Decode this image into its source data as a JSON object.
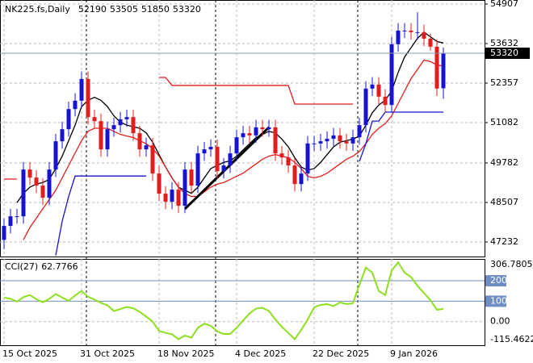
{
  "chart_data": [
    {
      "type": "candlestick",
      "title": "NK225.fs,Daily",
      "categories": [
        "15 Oct 2025",
        null,
        null,
        null,
        null,
        null,
        null,
        null,
        null,
        null,
        null,
        null,
        "31 Oct 2025",
        null,
        null,
        null,
        null,
        null,
        null,
        null,
        null,
        null,
        null,
        null,
        "18 Nov 2025",
        null,
        null,
        null,
        null,
        null,
        null,
        null,
        null,
        null,
        null,
        null,
        "4 Dec 2025",
        null,
        null,
        null,
        null,
        null,
        null,
        null,
        null,
        null,
        null,
        null,
        "22 Dec 2025",
        null,
        null,
        null,
        null,
        null,
        null,
        null,
        null,
        null,
        null,
        null,
        "9 Jan 2026",
        null,
        null,
        null,
        null,
        null,
        null,
        null,
        null
      ],
      "open": [
        47300,
        47750,
        48060,
        48060,
        49570,
        49310,
        49050,
        48660,
        49570,
        50480,
        50870,
        51520,
        51790,
        52490,
        51260,
        51130,
        50220,
        50870,
        51000,
        51190,
        51260,
        50740,
        50220,
        50350,
        49440,
        48790,
        48530,
        48920,
        48400,
        49570,
        49050,
        50090,
        50220,
        50300,
        49520,
        49700,
        50090,
        50610,
        50740,
        50670,
        50930,
        50870,
        50930,
        50090,
        49960,
        49700,
        49100,
        49440,
        50410,
        50410,
        50480,
        50560,
        50670,
        50480,
        50410,
        50610,
        51000,
        52180,
        52310,
        51920,
        51650,
        53610,
        54050,
        54050,
        54000,
        54000,
        53790,
        53530,
        52190
      ],
      "high": [
        47990,
        48300,
        48300,
        49810,
        49810,
        49550,
        49290,
        49810,
        50720,
        51110,
        51760,
        52030,
        52730,
        52730,
        51500,
        51370,
        51110,
        51240,
        51430,
        51500,
        51500,
        50980,
        50590,
        50590,
        49680,
        49030,
        49160,
        49160,
        49810,
        49810,
        50330,
        50460,
        50540,
        50540,
        49940,
        50330,
        50850,
        50980,
        50980,
        51170,
        51170,
        51170,
        51170,
        50330,
        50200,
        49940,
        49680,
        50650,
        50650,
        50720,
        50800,
        50910,
        50910,
        50720,
        50850,
        51240,
        52420,
        52550,
        52550,
        52160,
        53850,
        54290,
        54290,
        54290,
        54640,
        54240,
        53950,
        53770,
        53505
      ],
      "low": [
        47000,
        47510,
        47820,
        47820,
        49070,
        48810,
        48420,
        48420,
        49330,
        50240,
        50630,
        51280,
        51550,
        51020,
        50890,
        49980,
        49980,
        50630,
        50760,
        50950,
        50500,
        49980,
        49980,
        49200,
        48550,
        48290,
        48290,
        48160,
        48160,
        48810,
        48810,
        49850,
        49980,
        49280,
        49280,
        49460,
        49850,
        50370,
        50430,
        50430,
        50630,
        50630,
        49850,
        49720,
        49460,
        48860,
        48860,
        49200,
        50170,
        50170,
        50240,
        50320,
        50240,
        50170,
        50170,
        50370,
        50760,
        51940,
        51680,
        51410,
        51410,
        53370,
        53810,
        53760,
        53760,
        53550,
        53400,
        51940,
        51850
      ],
      "close": [
        47750,
        48060,
        48060,
        49570,
        49310,
        49050,
        48660,
        49570,
        50480,
        50870,
        51520,
        51790,
        52490,
        51260,
        51130,
        50220,
        50870,
        51000,
        51190,
        51260,
        50740,
        50220,
        50350,
        49440,
        48790,
        48530,
        48920,
        48400,
        49570,
        49050,
        50090,
        50220,
        50300,
        49520,
        49700,
        50090,
        50610,
        50740,
        50670,
        50930,
        50870,
        50930,
        50090,
        49960,
        49700,
        49100,
        49440,
        50410,
        50410,
        50480,
        50560,
        50670,
        50480,
        50410,
        50610,
        51000,
        52180,
        52310,
        51920,
        51650,
        53610,
        54050,
        54050,
        54000,
        54000,
        53790,
        53530,
        52180,
        53320
      ],
      "up_color": "#1414d2",
      "down_color": "#e41c1c",
      "series": [
        {
          "color": "#000000",
          "values": [
            null,
            null,
            48500,
            48800,
            49000,
            49100,
            49150,
            49250,
            49600,
            50000,
            50500,
            51000,
            51600,
            51800,
            51900,
            51800,
            51600,
            51300,
            51100,
            51000,
            50950,
            50900,
            50750,
            50450,
            50050,
            49650,
            49300,
            49000,
            48900,
            48800,
            49000,
            49300,
            49600,
            49700,
            49800,
            49850,
            50000,
            50200,
            50400,
            50600,
            50700,
            50800,
            50750,
            50550,
            50300,
            49950,
            49650,
            49550,
            49600,
            49800,
            50050,
            50300,
            50450,
            50500,
            50550,
            50650,
            51000,
            51400,
            51650,
            51800,
            52100,
            52700,
            53200,
            53500,
            53800,
            54000,
            53850,
            53700,
            53650
          ]
        },
        {
          "color": "#e41c1c",
          "values": [
            null,
            null,
            null,
            47300,
            47700,
            48000,
            48300,
            48600,
            48900,
            49300,
            49700,
            50100,
            50500,
            50800,
            50900,
            50900,
            50900,
            50800,
            50700,
            50650,
            50600,
            50500,
            50400,
            50250,
            50000,
            49650,
            49300,
            49000,
            48800,
            48700,
            48700,
            48850,
            49000,
            49100,
            49150,
            49250,
            49350,
            49450,
            49600,
            49750,
            49900,
            50000,
            50050,
            50000,
            49950,
            49800,
            49600,
            49350,
            49300,
            49350,
            49450,
            49600,
            49750,
            49900,
            50000,
            50150,
            50400,
            50700,
            50900,
            51050,
            51300,
            51700,
            52100,
            52500,
            52800,
            53100,
            53050,
            52950,
            52900
          ]
        },
        {
          "color": "#e41c1c",
          "values": [
            49260,
            49260,
            49260,
            null,
            null,
            null,
            null,
            null,
            null,
            null,
            null,
            null,
            null,
            null,
            null,
            null,
            null,
            null,
            null,
            null,
            null,
            null,
            null,
            null,
            52540,
            52540,
            52280,
            52280,
            52280,
            52280,
            52280,
            52280,
            52280,
            52280,
            52280,
            52280,
            52280,
            52280,
            52280,
            52280,
            52280,
            52280,
            52280,
            52280,
            52280,
            51680,
            51680,
            51680,
            51680,
            51680,
            51680,
            51680,
            51680,
            51680,
            51680,
            null,
            null,
            null,
            null,
            null,
            null,
            null,
            null,
            null,
            null,
            null,
            null,
            null,
            null
          ]
        },
        {
          "color": "#1414d2",
          "values": [
            null,
            null,
            null,
            null,
            null,
            null,
            null,
            null,
            46800,
            47900,
            48700,
            49360,
            49360,
            49360,
            49360,
            49360,
            49360,
            49360,
            49360,
            49360,
            49360,
            49360,
            49360,
            null,
            null,
            null,
            null,
            null,
            null,
            null,
            null,
            null,
            null,
            null,
            null,
            null,
            null,
            null,
            null,
            null,
            null,
            null,
            null,
            null,
            null,
            null,
            null,
            null,
            null,
            null,
            null,
            null,
            null,
            null,
            null,
            49830,
            50400,
            51130,
            51130,
            51420,
            51420,
            51420,
            51420,
            51420,
            51420,
            51420,
            51420,
            51420,
            51420
          ]
        }
      ],
      "trendline": {
        "x": [
          28,
          41
        ],
        "y": [
          48300,
          50930
        ],
        "color": "#000000"
      },
      "ylim": [
        46763,
        55037
      ],
      "yticks": [
        47232,
        48507,
        49782,
        51082,
        52357,
        53632,
        54907
      ],
      "grid": true
    },
    {
      "type": "line",
      "title": "CCI(27)",
      "color": "#8ee01e",
      "values": [
        118,
        112,
        98,
        120,
        130,
        110,
        95,
        112,
        135,
        118,
        102,
        128,
        150,
        122,
        108,
        92,
        80,
        52,
        62,
        72,
        66,
        48,
        25,
        0,
        -45,
        -55,
        -62,
        -86,
        -68,
        -78,
        -30,
        -10,
        -20,
        -48,
        -60,
        -60,
        -30,
        5,
        40,
        64,
        68,
        52,
        10,
        -25,
        -55,
        -86,
        -40,
        10,
        70,
        82,
        86,
        76,
        94,
        86,
        90,
        180,
        265,
        240,
        150,
        130,
        250,
        290,
        240,
        218,
        175,
        140,
        105,
        58,
        62.7766
      ],
      "ylim": [
        -115.4622,
        306.7805
      ],
      "yticks": [
        -115.4622,
        {
          "value": 0,
          "label": "0.00"
        },
        100,
        200,
        306.7805
      ],
      "levels": [
        100,
        200
      ],
      "level_color": "#6f8fc4",
      "grid": true
    }
  ]
}
